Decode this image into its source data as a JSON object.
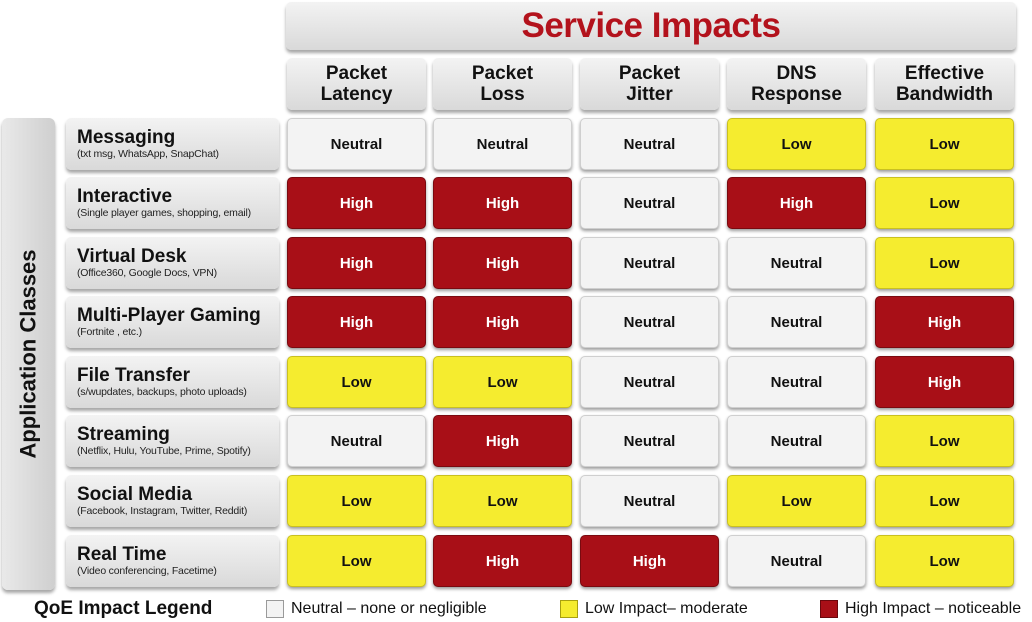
{
  "title": "Service Impacts",
  "side_label": "Application Classes",
  "columns": [
    {
      "line1": "Packet",
      "line2": "Latency"
    },
    {
      "line1": "Packet",
      "line2": "Loss"
    },
    {
      "line1": "Packet",
      "line2": "Jitter"
    },
    {
      "line1": "DNS",
      "line2": "Response"
    },
    {
      "line1": "Effective",
      "line2": "Bandwidth"
    }
  ],
  "rows": [
    {
      "name": "Messaging",
      "sub": "(txt msg, WhatsApp, SnapChat)",
      "cells": [
        "Neutral",
        "Neutral",
        "Neutral",
        "Low",
        "Low"
      ]
    },
    {
      "name": "Interactive",
      "sub": "(Single player games, shopping, email)",
      "cells": [
        "High",
        "High",
        "Neutral",
        "High",
        "Low"
      ]
    },
    {
      "name": "Virtual Desk",
      "sub": "(Office360,  Google Docs, VPN)",
      "cells": [
        "High",
        "High",
        "Neutral",
        "Neutral",
        "Low"
      ]
    },
    {
      "name": "Multi-Player Gaming",
      "sub": "(Fortnite , etc.)",
      "cells": [
        "High",
        "High",
        "Neutral",
        "Neutral",
        "High"
      ]
    },
    {
      "name": "File Transfer",
      "sub": "(s/wupdates, backups, photo uploads)",
      "cells": [
        "Low",
        "Low",
        "Neutral",
        "Neutral",
        "High"
      ]
    },
    {
      "name": "Streaming",
      "sub": "(Netflix, Hulu, YouTube, Prime, Spotify)",
      "cells": [
        "Neutral",
        "High",
        "Neutral",
        "Neutral",
        "Low"
      ]
    },
    {
      "name": "Social Media",
      "sub": "(Facebook, Instagram, Twitter, Reddit)",
      "cells": [
        "Low",
        "Low",
        "Neutral",
        "Low",
        "Low"
      ]
    },
    {
      "name": "Real Time",
      "sub": "(Video conferencing, Facetime)",
      "cells": [
        "Low",
        "High",
        "High",
        "Neutral",
        "Low"
      ]
    }
  ],
  "legend": {
    "title": "QoE Impact Legend",
    "items": [
      {
        "level": "neutral",
        "label": "Neutral – none or negligible"
      },
      {
        "level": "low",
        "label": "Low Impact– moderate"
      },
      {
        "level": "high",
        "label": "High Impact – noticeable"
      }
    ]
  },
  "colors": {
    "neutral": "#f3f3f3",
    "low": "#f5ec2f",
    "high": "#a80f17",
    "title": "#b3121c"
  }
}
